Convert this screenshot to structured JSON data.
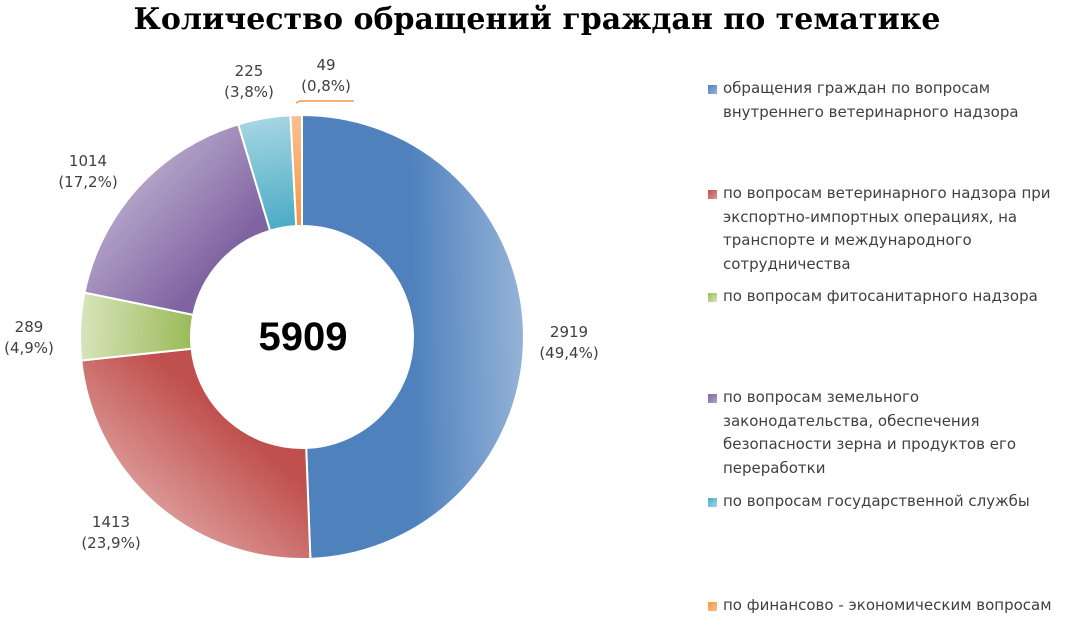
{
  "chart_data": {
    "type": "pie",
    "variant": "donut",
    "title": "Количество обращений граждан по тематике",
    "center_label": "5909",
    "legend_position": "right",
    "slices": [
      {
        "name": "обращения граждан по вопросам внутреннего ветеринарного надзора",
        "value": 2919,
        "percent_label": "(49,4%)",
        "color": "#4F81BD",
        "color_light": "#95B3D7"
      },
      {
        "name": "по вопросам  ветеринарного надзора при экспортно-импортных операциях, на транспорте и международного сотрудничества",
        "value": 1413,
        "percent_label": "(23,9%)",
        "color": "#C0504D",
        "color_light": "#DA9694"
      },
      {
        "name": "по вопросам фитосанитарного надзора",
        "value": 289,
        "percent_label": "(4,9%)",
        "color": "#9BBB59",
        "color_light": "#D7E4BC"
      },
      {
        "name": "по вопросам земельного законодательства, обеспечения безопасности зерна и продуктов его переработки",
        "value": 1014,
        "percent_label": "(17,2%)",
        "color": "#8064A2",
        "color_light": "#B2A1C7"
      },
      {
        "name": "по вопросам государственной службы",
        "value": 225,
        "percent_label": "(3,8%)",
        "color": "#4BACC6",
        "color_light": "#A5D5E2"
      },
      {
        "name": "по финансово - экономическим вопросам",
        "value": 49,
        "percent_label": "(0,8%)",
        "color": "#F79646",
        "color_light": "#FAC090"
      }
    ]
  }
}
